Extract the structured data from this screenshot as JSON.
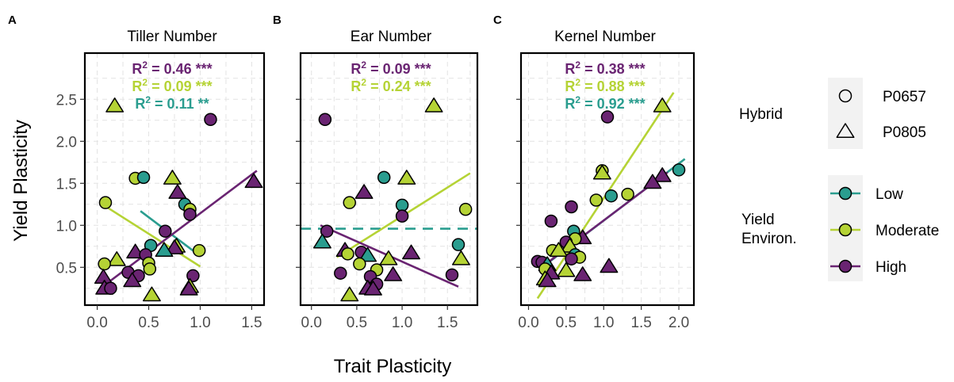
{
  "figure": {
    "y_axis_label": "Yield Plasticity",
    "x_axis_label": "Trait Plasticity"
  },
  "colors": {
    "Low": "#2a9d8f",
    "Moderate": "#b5d335",
    "High": "#6a2472",
    "axis_text": "#4d4d4d",
    "grid": "#e3e3e3",
    "legend_key_bg": "#f2f2f2"
  },
  "legend": {
    "hybrid_title": "Hybrid",
    "hybrid_items": [
      {
        "label": "P0657",
        "shape": "circle"
      },
      {
        "label": "P0805",
        "shape": "triangle"
      }
    ],
    "env_title_lines": [
      "Yield",
      "Environ."
    ],
    "env_items": [
      {
        "label": "Low",
        "key": "Low"
      },
      {
        "label": "Moderate",
        "key": "Moderate"
      },
      {
        "label": "High",
        "key": "High"
      }
    ]
  },
  "chart_data": [
    {
      "type": "scatter",
      "panel": "A",
      "title": "Tiller Number",
      "xlim": [
        -0.12,
        1.62
      ],
      "ylim": [
        0.05,
        3.05
      ],
      "x_ticks": [
        0.0,
        0.5,
        1.0,
        1.5
      ],
      "x_tick_labels": [
        "0.0",
        "0.5",
        "1.0",
        "1.5"
      ],
      "y_ticks": [
        0.5,
        1.0,
        1.5,
        2.0,
        2.5
      ],
      "y_tick_labels": [
        "0.5",
        "1.0",
        "1.5",
        "2.0",
        "2.5"
      ],
      "annotations": [
        {
          "base": "R",
          "sup": "2",
          "text": " = 0.46 ***",
          "key": "High"
        },
        {
          "base": "R",
          "sup": "2",
          "text": " = 0.09 ***",
          "key": "Moderate"
        },
        {
          "base": "R",
          "sup": "2",
          "text": " = 0.11 **",
          "key": "Low"
        }
      ],
      "fits": [
        {
          "key": "Low",
          "x": [
            0.42,
            0.95
          ],
          "y": [
            1.17,
            0.68
          ],
          "dashed": false
        },
        {
          "key": "Moderate",
          "x": [
            0.05,
            1.0
          ],
          "y": [
            1.25,
            0.51
          ],
          "dashed": false
        },
        {
          "key": "High",
          "x": [
            0.02,
            1.55
          ],
          "y": [
            0.24,
            1.65
          ],
          "dashed": false
        }
      ],
      "points": [
        {
          "x": 0.17,
          "y": 2.42,
          "shape": "triangle",
          "key": "Moderate"
        },
        {
          "x": 1.1,
          "y": 2.26,
          "shape": "circle",
          "key": "High"
        },
        {
          "x": 0.37,
          "y": 1.56,
          "shape": "circle",
          "key": "Moderate"
        },
        {
          "x": 0.45,
          "y": 1.57,
          "shape": "circle",
          "key": "Low"
        },
        {
          "x": 0.73,
          "y": 1.56,
          "shape": "triangle",
          "key": "Moderate"
        },
        {
          "x": 1.52,
          "y": 1.52,
          "shape": "triangle",
          "key": "High"
        },
        {
          "x": 0.78,
          "y": 1.39,
          "shape": "triangle",
          "key": "High"
        },
        {
          "x": 0.08,
          "y": 1.27,
          "shape": "circle",
          "key": "Moderate"
        },
        {
          "x": 0.85,
          "y": 1.25,
          "shape": "circle",
          "key": "Low"
        },
        {
          "x": 0.9,
          "y": 1.19,
          "shape": "circle",
          "key": "Moderate"
        },
        {
          "x": 0.9,
          "y": 1.13,
          "shape": "circle",
          "key": "High"
        },
        {
          "x": 0.66,
          "y": 0.93,
          "shape": "circle",
          "key": "High"
        },
        {
          "x": 0.52,
          "y": 0.76,
          "shape": "circle",
          "key": "Low"
        },
        {
          "x": 0.77,
          "y": 0.75,
          "shape": "triangle",
          "key": "Moderate"
        },
        {
          "x": 0.75,
          "y": 0.73,
          "shape": "triangle",
          "key": "High"
        },
        {
          "x": 0.65,
          "y": 0.7,
          "shape": "triangle",
          "key": "Low"
        },
        {
          "x": 0.99,
          "y": 0.7,
          "shape": "circle",
          "key": "Moderate"
        },
        {
          "x": 0.37,
          "y": 0.68,
          "shape": "triangle",
          "key": "High"
        },
        {
          "x": 0.47,
          "y": 0.65,
          "shape": "circle",
          "key": "High"
        },
        {
          "x": 0.19,
          "y": 0.59,
          "shape": "triangle",
          "key": "Moderate"
        },
        {
          "x": 0.07,
          "y": 0.54,
          "shape": "circle",
          "key": "Moderate"
        },
        {
          "x": 0.5,
          "y": 0.55,
          "shape": "circle",
          "key": "Moderate"
        },
        {
          "x": 0.51,
          "y": 0.48,
          "shape": "circle",
          "key": "Moderate"
        },
        {
          "x": 0.3,
          "y": 0.44,
          "shape": "circle",
          "key": "High"
        },
        {
          "x": 0.4,
          "y": 0.4,
          "shape": "circle",
          "key": "High"
        },
        {
          "x": 0.93,
          "y": 0.4,
          "shape": "circle",
          "key": "High"
        },
        {
          "x": 0.06,
          "y": 0.38,
          "shape": "triangle",
          "key": "High"
        },
        {
          "x": 0.34,
          "y": 0.34,
          "shape": "triangle",
          "key": "High"
        },
        {
          "x": 0.9,
          "y": 0.27,
          "shape": "triangle",
          "key": "Moderate"
        },
        {
          "x": 0.07,
          "y": 0.25,
          "shape": "triangle",
          "key": "High"
        },
        {
          "x": 0.13,
          "y": 0.25,
          "shape": "circle",
          "key": "High"
        },
        {
          "x": 0.89,
          "y": 0.24,
          "shape": "triangle",
          "key": "High"
        },
        {
          "x": 0.53,
          "y": 0.17,
          "shape": "triangle",
          "key": "Moderate"
        }
      ]
    },
    {
      "type": "scatter",
      "panel": "B",
      "title": "Ear Number",
      "xlim": [
        -0.12,
        1.83
      ],
      "ylim": [
        0.05,
        3.05
      ],
      "x_ticks": [
        0.0,
        0.5,
        1.0,
        1.5
      ],
      "x_tick_labels": [
        "0.0",
        "0.5",
        "1.0",
        "1.5"
      ],
      "y_ticks": [
        0.5,
        1.0,
        1.5,
        2.0,
        2.5
      ],
      "y_tick_labels": [],
      "annotations": [
        {
          "base": "R",
          "sup": "2",
          "text": " = 0.09 ***",
          "key": "High"
        },
        {
          "base": "R",
          "sup": "2",
          "text": " = 0.24 ***",
          "key": "Moderate"
        }
      ],
      "fits": [
        {
          "key": "Low",
          "x": [
            -0.12,
            1.83
          ],
          "y": [
            0.96,
            0.96
          ],
          "dashed": true
        },
        {
          "key": "Moderate",
          "x": [
            0.28,
            1.75
          ],
          "y": [
            0.62,
            1.62
          ],
          "dashed": false
        },
        {
          "key": "High",
          "x": [
            0.1,
            1.62
          ],
          "y": [
            1.0,
            0.27
          ],
          "dashed": false
        }
      ],
      "points": [
        {
          "x": 1.35,
          "y": 2.42,
          "shape": "triangle",
          "key": "Moderate"
        },
        {
          "x": 0.15,
          "y": 2.26,
          "shape": "circle",
          "key": "High"
        },
        {
          "x": 0.8,
          "y": 1.57,
          "shape": "circle",
          "key": "Low"
        },
        {
          "x": 1.05,
          "y": 1.56,
          "shape": "triangle",
          "key": "Moderate"
        },
        {
          "x": 0.58,
          "y": 1.39,
          "shape": "triangle",
          "key": "High"
        },
        {
          "x": 0.42,
          "y": 1.27,
          "shape": "circle",
          "key": "Moderate"
        },
        {
          "x": 1.0,
          "y": 1.24,
          "shape": "circle",
          "key": "Low"
        },
        {
          "x": 1.7,
          "y": 1.19,
          "shape": "circle",
          "key": "Moderate"
        },
        {
          "x": 1.0,
          "y": 1.11,
          "shape": "circle",
          "key": "High"
        },
        {
          "x": 0.17,
          "y": 0.93,
          "shape": "circle",
          "key": "High"
        },
        {
          "x": 0.12,
          "y": 0.8,
          "shape": "triangle",
          "key": "Low"
        },
        {
          "x": 1.62,
          "y": 0.77,
          "shape": "circle",
          "key": "Low"
        },
        {
          "x": 0.37,
          "y": 0.7,
          "shape": "triangle",
          "key": "High"
        },
        {
          "x": 0.4,
          "y": 0.66,
          "shape": "circle",
          "key": "Moderate"
        },
        {
          "x": 0.55,
          "y": 0.68,
          "shape": "circle",
          "key": "High"
        },
        {
          "x": 0.62,
          "y": 0.64,
          "shape": "triangle",
          "key": "Low"
        },
        {
          "x": 1.1,
          "y": 0.67,
          "shape": "triangle",
          "key": "High"
        },
        {
          "x": 0.85,
          "y": 0.6,
          "shape": "triangle",
          "key": "Moderate"
        },
        {
          "x": 1.65,
          "y": 0.6,
          "shape": "triangle",
          "key": "Moderate"
        },
        {
          "x": 0.53,
          "y": 0.54,
          "shape": "circle",
          "key": "Moderate"
        },
        {
          "x": 0.72,
          "y": 0.47,
          "shape": "circle",
          "key": "Moderate"
        },
        {
          "x": 0.32,
          "y": 0.43,
          "shape": "circle",
          "key": "High"
        },
        {
          "x": 0.9,
          "y": 0.41,
          "shape": "triangle",
          "key": "High"
        },
        {
          "x": 0.65,
          "y": 0.39,
          "shape": "circle",
          "key": "High"
        },
        {
          "x": 1.55,
          "y": 0.41,
          "shape": "circle",
          "key": "High"
        },
        {
          "x": 0.72,
          "y": 0.3,
          "shape": "circle",
          "key": "High"
        },
        {
          "x": 0.62,
          "y": 0.25,
          "shape": "triangle",
          "key": "High"
        },
        {
          "x": 0.68,
          "y": 0.24,
          "shape": "triangle",
          "key": "High"
        },
        {
          "x": 0.42,
          "y": 0.17,
          "shape": "triangle",
          "key": "Moderate"
        }
      ]
    },
    {
      "type": "scatter",
      "panel": "C",
      "title": "Kernel Number",
      "xlim": [
        -0.1,
        2.2
      ],
      "ylim": [
        0.05,
        3.05
      ],
      "x_ticks": [
        0.0,
        0.5,
        1.0,
        1.5,
        2.0
      ],
      "x_tick_labels": [
        "0.0",
        "0.5",
        "1.0",
        "1.5",
        "2.0"
      ],
      "y_ticks": [
        0.5,
        1.0,
        1.5,
        2.0,
        2.5
      ],
      "y_tick_labels": [],
      "annotations": [
        {
          "base": "R",
          "sup": "2",
          "text": " = 0.38 ***",
          "key": "High"
        },
        {
          "base": "R",
          "sup": "2",
          "text": " = 0.88 ***",
          "key": "Moderate"
        },
        {
          "base": "R",
          "sup": "2",
          "text": " = 0.92 ***",
          "key": "Low"
        }
      ],
      "fits": [
        {
          "key": "Moderate",
          "x": [
            0.12,
            1.93
          ],
          "y": [
            0.13,
            2.58
          ],
          "dashed": false
        },
        {
          "key": "Low",
          "x": [
            0.18,
            2.08
          ],
          "y": [
            0.5,
            1.79
          ],
          "dashed": false
        },
        {
          "key": "High",
          "x": [
            0.2,
            1.85
          ],
          "y": [
            0.52,
            1.63
          ],
          "dashed": false
        }
      ],
      "points": [
        {
          "x": 1.78,
          "y": 2.42,
          "shape": "triangle",
          "key": "Moderate"
        },
        {
          "x": 1.05,
          "y": 2.29,
          "shape": "circle",
          "key": "High"
        },
        {
          "x": 0.98,
          "y": 1.65,
          "shape": "circle",
          "key": "Moderate"
        },
        {
          "x": 0.98,
          "y": 1.62,
          "shape": "triangle",
          "key": "Moderate"
        },
        {
          "x": 2.0,
          "y": 1.66,
          "shape": "circle",
          "key": "Low"
        },
        {
          "x": 1.78,
          "y": 1.59,
          "shape": "triangle",
          "key": "High"
        },
        {
          "x": 1.65,
          "y": 1.51,
          "shape": "triangle",
          "key": "High"
        },
        {
          "x": 1.1,
          "y": 1.35,
          "shape": "circle",
          "key": "Low"
        },
        {
          "x": 1.32,
          "y": 1.37,
          "shape": "circle",
          "key": "Moderate"
        },
        {
          "x": 0.9,
          "y": 1.3,
          "shape": "circle",
          "key": "Moderate"
        },
        {
          "x": 0.57,
          "y": 1.22,
          "shape": "circle",
          "key": "High"
        },
        {
          "x": 0.3,
          "y": 1.05,
          "shape": "circle",
          "key": "High"
        },
        {
          "x": 0.6,
          "y": 0.93,
          "shape": "circle",
          "key": "Low"
        },
        {
          "x": 0.72,
          "y": 0.85,
          "shape": "triangle",
          "key": "High"
        },
        {
          "x": 0.62,
          "y": 0.84,
          "shape": "circle",
          "key": "Moderate"
        },
        {
          "x": 0.5,
          "y": 0.8,
          "shape": "circle",
          "key": "High"
        },
        {
          "x": 0.55,
          "y": 0.75,
          "shape": "triangle",
          "key": "Moderate"
        },
        {
          "x": 0.32,
          "y": 0.7,
          "shape": "circle",
          "key": "Moderate"
        },
        {
          "x": 0.4,
          "y": 0.7,
          "shape": "triangle",
          "key": "Moderate"
        },
        {
          "x": 0.62,
          "y": 0.65,
          "shape": "circle",
          "key": "Low"
        },
        {
          "x": 0.68,
          "y": 0.62,
          "shape": "circle",
          "key": "Moderate"
        },
        {
          "x": 0.57,
          "y": 0.6,
          "shape": "circle",
          "key": "High"
        },
        {
          "x": 0.12,
          "y": 0.57,
          "shape": "circle",
          "key": "High"
        },
        {
          "x": 0.18,
          "y": 0.56,
          "shape": "circle",
          "key": "High"
        },
        {
          "x": 0.25,
          "y": 0.53,
          "shape": "triangle",
          "key": "Low"
        },
        {
          "x": 1.07,
          "y": 0.51,
          "shape": "triangle",
          "key": "High"
        },
        {
          "x": 0.22,
          "y": 0.48,
          "shape": "circle",
          "key": "Moderate"
        },
        {
          "x": 0.5,
          "y": 0.46,
          "shape": "triangle",
          "key": "Moderate"
        },
        {
          "x": 0.3,
          "y": 0.43,
          "shape": "triangle",
          "key": "High"
        },
        {
          "x": 0.72,
          "y": 0.41,
          "shape": "triangle",
          "key": "High"
        },
        {
          "x": 0.22,
          "y": 0.36,
          "shape": "triangle",
          "key": "Moderate"
        },
        {
          "x": 0.25,
          "y": 0.34,
          "shape": "triangle",
          "key": "High"
        }
      ]
    }
  ]
}
